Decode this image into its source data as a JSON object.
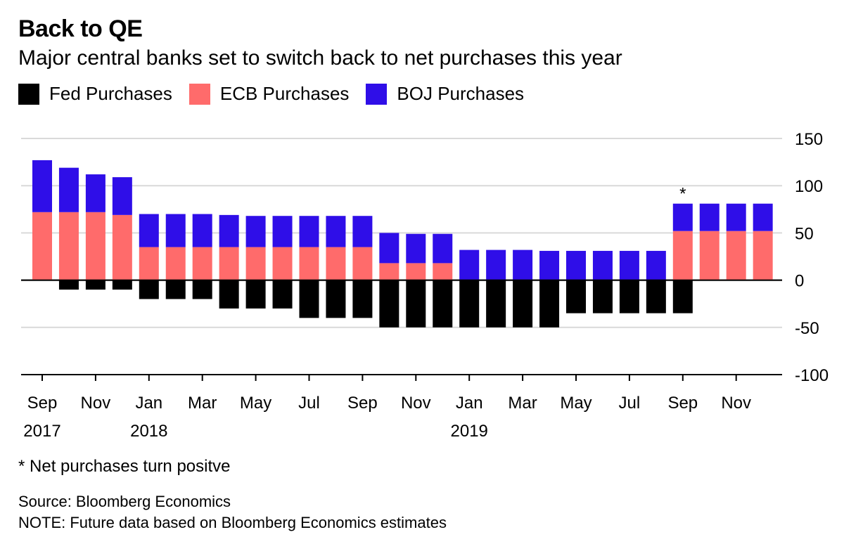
{
  "header": {
    "title": "Back to QE",
    "subtitle": "Major central banks set to switch back to net purchases this year"
  },
  "legend": [
    {
      "label": "Fed Purchases",
      "color": "#000000"
    },
    {
      "label": "ECB Purchases",
      "color": "#ff6b6b"
    },
    {
      "label": "BOJ Purchases",
      "color": "#2f0ee8"
    }
  ],
  "chart_data": {
    "type": "bar",
    "stacked": true,
    "title": "Back to QE",
    "subtitle": "Major central banks set to switch back to net purchases this year",
    "categories": [
      "Sep 2017",
      "Oct 2017",
      "Nov 2017",
      "Dec 2017",
      "Jan 2018",
      "Feb 2018",
      "Mar 2018",
      "Apr 2018",
      "May 2018",
      "Jun 2018",
      "Jul 2018",
      "Aug 2018",
      "Sep 2018",
      "Oct 2018",
      "Nov 2018",
      "Dec 2018",
      "Jan 2019",
      "Feb 2019",
      "Mar 2019",
      "Apr 2019",
      "May 2019",
      "Jun 2019",
      "Jul 2019",
      "Aug 2019",
      "Sep 2019",
      "Oct 2019",
      "Nov 2019",
      "Dec 2019"
    ],
    "series": [
      {
        "name": "Fed Purchases",
        "color": "#000000",
        "values": [
          0,
          -10,
          -10,
          -10,
          -20,
          -20,
          -20,
          -30,
          -30,
          -30,
          -40,
          -40,
          -40,
          -50,
          -50,
          -50,
          -50,
          -50,
          -50,
          -50,
          -35,
          -35,
          -35,
          -35,
          -35,
          0,
          0,
          0
        ]
      },
      {
        "name": "ECB Purchases",
        "color": "#ff6b6b",
        "values": [
          72,
          72,
          72,
          69,
          35,
          35,
          35,
          35,
          35,
          35,
          35,
          35,
          35,
          18,
          18,
          18,
          0,
          0,
          0,
          0,
          0,
          0,
          0,
          0,
          52,
          52,
          52,
          52
        ]
      },
      {
        "name": "BOJ Purchases",
        "color": "#2f0ee8",
        "values": [
          55,
          47,
          40,
          40,
          35,
          35,
          35,
          34,
          33,
          33,
          33,
          33,
          33,
          32,
          31,
          31,
          32,
          32,
          32,
          31,
          31,
          31,
          31,
          31,
          29,
          29,
          29,
          29
        ]
      }
    ],
    "ylim": [
      -100,
      150
    ],
    "yticks": [
      -100,
      -50,
      0,
      50,
      100,
      150
    ],
    "ytick_labels": [
      "-100",
      "-50",
      "0",
      "50",
      "100",
      "150"
    ],
    "xtick_labels": [
      {
        "index": 0,
        "month": "Sep",
        "year": "2017"
      },
      {
        "index": 2,
        "month": "Nov",
        "year": ""
      },
      {
        "index": 4,
        "month": "Jan",
        "year": "2018"
      },
      {
        "index": 6,
        "month": "Mar",
        "year": ""
      },
      {
        "index": 8,
        "month": "May",
        "year": ""
      },
      {
        "index": 10,
        "month": "Jul",
        "year": ""
      },
      {
        "index": 12,
        "month": "Sep",
        "year": ""
      },
      {
        "index": 14,
        "month": "Nov",
        "year": ""
      },
      {
        "index": 16,
        "month": "Jan",
        "year": "2019"
      },
      {
        "index": 18,
        "month": "Mar",
        "year": ""
      },
      {
        "index": 20,
        "month": "May",
        "year": ""
      },
      {
        "index": 22,
        "month": "Jul",
        "year": ""
      },
      {
        "index": 24,
        "month": "Sep",
        "year": ""
      },
      {
        "index": 26,
        "month": "Nov",
        "year": ""
      }
    ],
    "annotations": [
      {
        "index": 24,
        "text": "*"
      }
    ],
    "grid": true,
    "legend_position": "top-left"
  },
  "footnote": "* Net purchases turn positve",
  "source": "Source: Bloomberg Economics",
  "note": "NOTE: Future data based on Bloomberg Economics estimates"
}
